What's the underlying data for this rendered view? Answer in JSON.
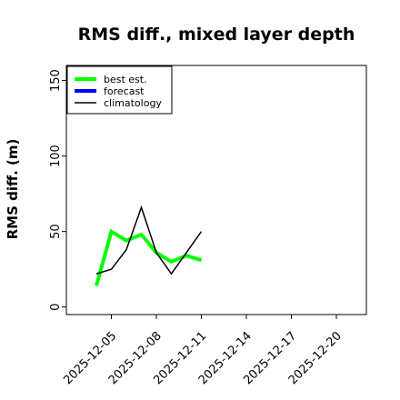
{
  "chart_data": {
    "type": "line",
    "title": "RMS diff., mixed layer depth",
    "ylabel": "RMS diff. (m)",
    "xlabel": "",
    "ylim": [
      -5,
      160
    ],
    "xlim": [
      "2025-12-02",
      "2025-12-22"
    ],
    "y_ticks": [
      0,
      50,
      100,
      150
    ],
    "x_ticks": [
      "2025-12-05",
      "2025-12-08",
      "2025-12-11",
      "2025-12-14",
      "2025-12-17",
      "2025-12-20"
    ],
    "highlighted_x_tick": "2025-12-11",
    "highlight_color": "#2e8b2e",
    "grid": false,
    "legend": {
      "position": "top-left"
    },
    "series": [
      {
        "name": "best est.",
        "color": "#00ff00",
        "line_width": "thick",
        "x": [
          "2025-12-04",
          "2025-12-05",
          "2025-12-06",
          "2025-12-07",
          "2025-12-08",
          "2025-12-09",
          "2025-12-10",
          "2025-12-11"
        ],
        "y": [
          14,
          50,
          44,
          48,
          36,
          30,
          34,
          31
        ]
      },
      {
        "name": "forecast",
        "color": "#0000ff",
        "line_width": "thick",
        "x": [],
        "y": []
      },
      {
        "name": "climatology",
        "color": "#000000",
        "line_width": "thin",
        "x": [
          "2025-12-04",
          "2025-12-05",
          "2025-12-06",
          "2025-12-07",
          "2025-12-08",
          "2025-12-09",
          "2025-12-10",
          "2025-12-11"
        ],
        "y": [
          22,
          25,
          38,
          66,
          36,
          22,
          36,
          50
        ]
      }
    ]
  }
}
